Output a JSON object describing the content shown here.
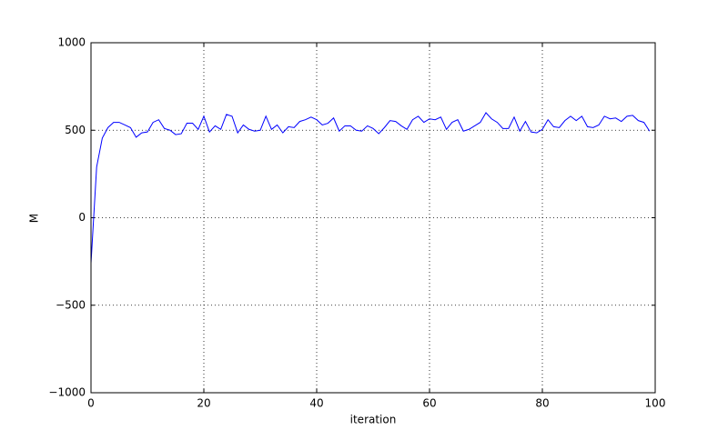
{
  "chart_data": {
    "type": "line",
    "xlabel": "iteration",
    "ylabel": "M",
    "x": [
      0,
      1,
      2,
      3,
      4,
      5,
      6,
      7,
      8,
      9,
      10,
      11,
      12,
      13,
      14,
      15,
      16,
      17,
      18,
      19,
      20,
      21,
      22,
      23,
      24,
      25,
      26,
      27,
      28,
      29,
      30,
      31,
      32,
      33,
      34,
      35,
      36,
      37,
      38,
      39,
      40,
      41,
      42,
      43,
      44,
      45,
      46,
      47,
      48,
      49,
      50,
      51,
      52,
      53,
      54,
      55,
      56,
      57,
      58,
      59,
      60,
      61,
      62,
      63,
      64,
      65,
      66,
      67,
      68,
      69,
      70,
      71,
      72,
      73,
      74,
      75,
      76,
      77,
      78,
      79,
      80,
      81,
      82,
      83,
      84,
      85,
      86,
      87,
      88,
      89,
      90,
      91,
      92,
      93,
      94,
      95,
      96,
      97,
      98,
      99
    ],
    "series": [
      {
        "name": "M",
        "color": "#0000ff",
        "values": [
          -260,
          290,
          455,
          515,
          545,
          545,
          530,
          515,
          460,
          485,
          490,
          545,
          560,
          510,
          500,
          475,
          480,
          540,
          540,
          505,
          580,
          490,
          525,
          505,
          590,
          580,
          485,
          530,
          505,
          495,
          500,
          580,
          505,
          530,
          485,
          520,
          515,
          550,
          560,
          575,
          560,
          530,
          540,
          570,
          495,
          525,
          525,
          500,
          495,
          525,
          510,
          480,
          515,
          555,
          550,
          525,
          505,
          560,
          580,
          545,
          565,
          560,
          575,
          505,
          545,
          560,
          495,
          505,
          525,
          545,
          600,
          565,
          545,
          510,
          510,
          575,
          495,
          550,
          490,
          485,
          505,
          560,
          520,
          515,
          555,
          580,
          555,
          580,
          520,
          515,
          530,
          580,
          565,
          570,
          550,
          580,
          585,
          555,
          545,
          495
        ]
      }
    ],
    "xlim": [
      0,
      100
    ],
    "xticks": [
      0,
      20,
      40,
      60,
      80,
      100
    ],
    "ylim": [
      -1000,
      1000
    ],
    "yticks": [
      {
        "value": -1000,
        "label": "−1000"
      },
      {
        "value": -500,
        "label": "−500"
      },
      0,
      500,
      1000
    ],
    "grid": true
  }
}
